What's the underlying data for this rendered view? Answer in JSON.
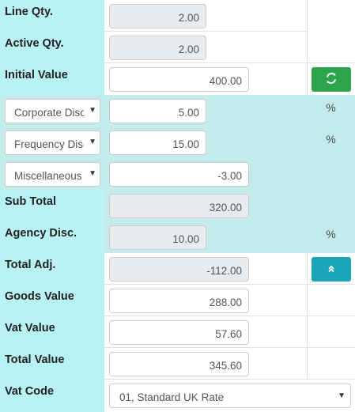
{
  "rows": {
    "line_qty": {
      "label": "Line Qty.",
      "value": "2.00"
    },
    "active_qty": {
      "label": "Active Qty.",
      "value": "2.00"
    },
    "initial_value": {
      "label": "Initial Value",
      "value": "400.00"
    },
    "corporate": {
      "select": "Corporate Discount",
      "value": "5.00",
      "unit": "%"
    },
    "frequency": {
      "select": "Frequency Discount",
      "value": "15.00",
      "unit": "%"
    },
    "misc": {
      "select": "Miscellaneous",
      "value": "-3.00"
    },
    "sub_total": {
      "label": "Sub Total",
      "value": "320.00"
    },
    "agency_disc": {
      "label": "Agency Disc.",
      "value": "10.00",
      "unit": "%"
    },
    "total_adj": {
      "label": "Total Adj.",
      "value": "-112.00"
    },
    "goods_value": {
      "label": "Goods Value",
      "value": "288.00"
    },
    "vat_value": {
      "label": "Vat Value",
      "value": "57.60"
    },
    "total_value": {
      "label": "Total Value",
      "value": "345.60"
    },
    "vat_code": {
      "label": "Vat Code",
      "value": "01, Standard UK Rate"
    }
  },
  "colors": {
    "label_bg": "#b9f2f4",
    "teal_bg": "#c3ebec",
    "refresh_btn": "#2ca44b",
    "collapse_btn": "#1ca5b8"
  },
  "icons": {
    "refresh": "refresh-icon",
    "collapse": "double-chevron-up-icon",
    "dropdown": "caret-down-icon"
  }
}
